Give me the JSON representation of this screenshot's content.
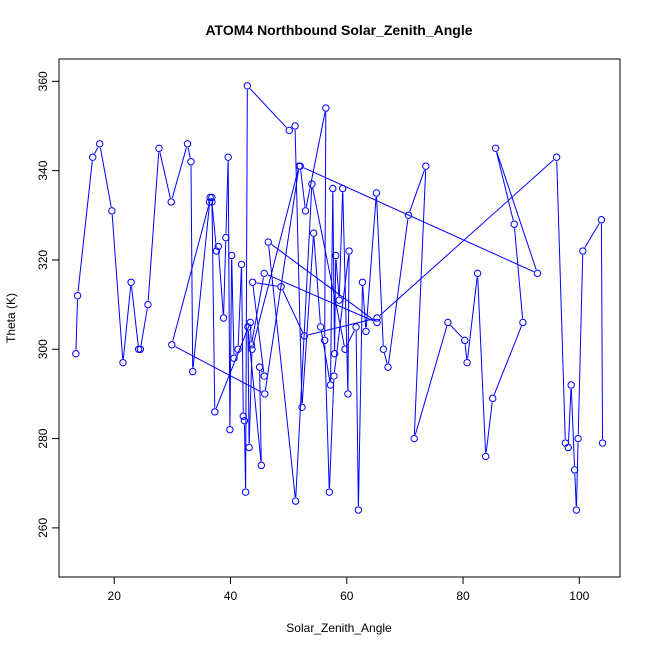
{
  "chart_data": {
    "type": "line",
    "title": "ATOM4 Northbound Solar_Zenith_Angle",
    "xlabel": "Solar_Zenith_Angle",
    "ylabel": "Theta (K)",
    "xlim": [
      10.5,
      107
    ],
    "ylim": [
      249,
      365
    ],
    "xticks": [
      20,
      40,
      60,
      80,
      100
    ],
    "yticks": [
      260,
      280,
      300,
      320,
      340,
      360
    ],
    "grid": false,
    "legend": "none",
    "line_color": "#0000ff",
    "marker": "open-circle",
    "series": [
      {
        "points": [
          [
            13.4,
            299
          ],
          [
            13.7,
            312
          ],
          [
            16.3,
            343
          ],
          [
            17.5,
            346
          ],
          [
            19.6,
            331
          ],
          [
            21.5,
            297
          ],
          [
            22.9,
            315
          ],
          [
            24.2,
            300
          ],
          [
            24.5,
            300
          ],
          [
            25.8,
            310
          ],
          [
            27.7,
            345
          ],
          [
            29.8,
            333
          ],
          [
            32.6,
            346
          ],
          [
            33.2,
            342
          ],
          [
            33.5,
            295
          ],
          [
            36.5,
            334
          ],
          [
            36.8,
            333
          ],
          [
            37.6,
            322
          ],
          [
            37.9,
            323
          ],
          [
            38.8,
            307
          ],
          [
            39.2,
            325
          ],
          [
            39.6,
            343
          ],
          [
            39.9,
            282
          ],
          [
            40.2,
            321
          ],
          [
            40.6,
            298
          ],
          [
            41.3,
            300
          ],
          [
            41.9,
            319
          ],
          [
            42.2,
            285
          ],
          [
            42.4,
            284
          ],
          [
            42.6,
            268
          ],
          [
            42.9,
            359
          ],
          [
            50.1,
            349
          ],
          [
            51.1,
            350
          ],
          [
            52.3,
            287
          ],
          [
            54.3,
            326
          ],
          [
            55.5,
            305
          ],
          [
            57.2,
            292
          ],
          [
            57.6,
            336
          ],
          [
            57.9,
            299
          ],
          [
            58.1,
            321
          ],
          [
            58.7,
            311
          ],
          [
            59.3,
            336
          ],
          [
            60.2,
            290
          ],
          [
            60.4,
            322
          ],
          [
            57.8,
            294
          ],
          [
            57.0,
            268
          ],
          [
            56.2,
            302
          ],
          [
            56.4,
            354
          ],
          [
            52.9,
            331
          ],
          [
            52.0,
            341
          ],
          [
            92.8,
            317
          ],
          [
            85.6,
            345
          ],
          [
            88.8,
            328
          ],
          [
            90.3,
            306
          ],
          [
            85.1,
            289
          ],
          [
            83.9,
            276
          ],
          [
            82.5,
            317
          ],
          [
            80.7,
            297
          ],
          [
            80.3,
            302
          ],
          [
            77.4,
            306
          ],
          [
            71.6,
            280
          ],
          [
            73.6,
            341
          ],
          [
            70.6,
            330
          ],
          [
            67.1,
            296
          ],
          [
            66.3,
            300
          ],
          [
            65.1,
            335
          ],
          [
            63.3,
            304
          ],
          [
            62.7,
            315
          ],
          [
            62.0,
            264
          ],
          [
            61.6,
            305
          ],
          [
            59.7,
            300
          ],
          [
            54.0,
            337
          ],
          [
            51.2,
            266
          ],
          [
            46.5,
            324
          ],
          [
            65.2,
            306
          ],
          [
            45.8,
            317
          ],
          [
            43.6,
            301
          ],
          [
            43.4,
            306
          ],
          [
            37.3,
            286
          ],
          [
            36.8,
            334
          ],
          [
            36.4,
            333
          ],
          [
            29.9,
            301
          ],
          [
            45.9,
            290
          ],
          [
            51.8,
            341
          ],
          [
            43.7,
            300
          ],
          [
            43.2,
            278
          ],
          [
            43.0,
            305
          ],
          [
            45.3,
            274
          ],
          [
            45.0,
            296
          ],
          [
            45.8,
            294
          ],
          [
            43.8,
            315
          ],
          [
            48.7,
            314
          ],
          [
            52.7,
            303
          ],
          [
            65.2,
            307
          ],
          [
            96.1,
            343
          ],
          [
            97.6,
            279
          ],
          [
            98.1,
            278
          ],
          [
            98.6,
            292
          ],
          [
            99.2,
            273
          ],
          [
            99.5,
            264
          ],
          [
            99.8,
            280
          ],
          [
            100.6,
            322
          ],
          [
            103.8,
            329
          ],
          [
            104.0,
            279
          ]
        ]
      }
    ]
  }
}
